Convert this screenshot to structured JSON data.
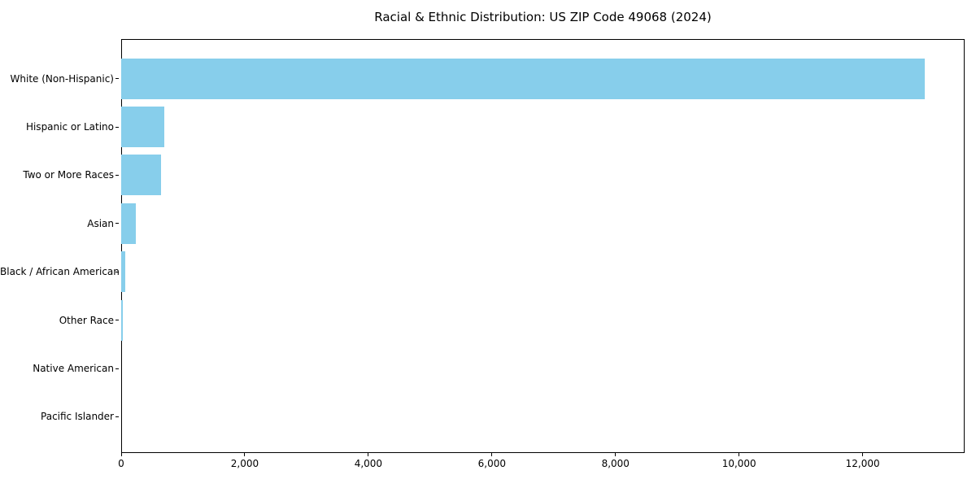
{
  "figure": {
    "background": "#ffffff"
  },
  "chart_data": {
    "type": "bar",
    "orientation": "horizontal",
    "title": "Racial & Ethnic Distribution: US ZIP Code 49068 (2024)",
    "categories": [
      "White (Non-Hispanic)",
      "Hispanic or Latino",
      "Two or More Races",
      "Asian",
      "Black / African American",
      "Other Race",
      "Native American",
      "Pacific Islander"
    ],
    "values": [
      13000,
      700,
      650,
      235,
      65,
      30,
      0,
      0
    ],
    "xlabel": "",
    "ylabel": "",
    "xlim": [
      0,
      13650
    ],
    "x_ticks": [
      0,
      2000,
      4000,
      6000,
      8000,
      10000,
      12000
    ],
    "x_tick_labels": [
      "0",
      "2,000",
      "4,000",
      "6,000",
      "8,000",
      "10,000",
      "12,000"
    ],
    "bar_color": "#87ceeb",
    "axis_color": "#000000",
    "grid": false,
    "legend": null
  }
}
